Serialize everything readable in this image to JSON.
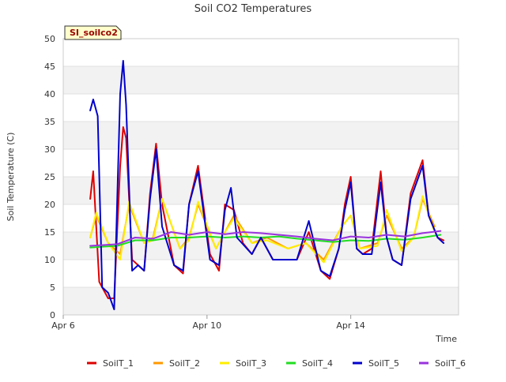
{
  "chart_data": {
    "type": "line",
    "title": "Soil CO2 Temperatures",
    "xlabel": "Time",
    "ylabel": "Soil Temperature (C)",
    "annotation": "SI_soilco2",
    "ylim": [
      0,
      50
    ],
    "yticks": [
      0,
      5,
      10,
      15,
      20,
      25,
      30,
      35,
      40,
      45,
      50
    ],
    "xlim": [
      "2024-04-06T00:00",
      "2024-04-17T00:00"
    ],
    "xticks": [
      {
        "label": "Apr 6",
        "x": "2024-04-06T00:00"
      },
      {
        "label": "Apr 10",
        "x": "2024-04-10T00:00"
      },
      {
        "label": "Apr 14",
        "x": "2024-04-14T00:00"
      }
    ],
    "grid": "horizontal bands",
    "legend_position": "bottom",
    "colors": {
      "SoilT_1": "#dd0000",
      "SoilT_2": "#ff9900",
      "SoilT_3": "#ffee00",
      "SoilT_4": "#22dd22",
      "SoilT_5": "#0000cc",
      "SoilT_6": "#9933dd",
      "annotation_bg": "#ffffcc",
      "annotation_text": "#990000",
      "band": "#f2f2f2"
    },
    "series": [
      {
        "name": "SoilT_1",
        "x": [
          "2024-04-06T18:00",
          "2024-04-06T20:00",
          "2024-04-07T00:00",
          "2024-04-07T02:00",
          "2024-04-07T06:00",
          "2024-04-07T10:00",
          "2024-04-07T14:00",
          "2024-04-07T16:00",
          "2024-04-07T18:00",
          "2024-04-07T22:00",
          "2024-04-08T02:00",
          "2024-04-08T06:00",
          "2024-04-08T10:00",
          "2024-04-08T14:00",
          "2024-04-08T18:00",
          "2024-04-09T02:00",
          "2024-04-09T08:00",
          "2024-04-09T12:00",
          "2024-04-09T18:00",
          "2024-04-10T02:00",
          "2024-04-10T08:00",
          "2024-04-10T12:00",
          "2024-04-10T18:00",
          "2024-04-11T00:00",
          "2024-04-11T06:00",
          "2024-04-11T12:00",
          "2024-04-11T16:00",
          "2024-04-11T20:00",
          "2024-04-12T04:00",
          "2024-04-12T12:00",
          "2024-04-12T20:00",
          "2024-04-13T04:00",
          "2024-04-13T10:00",
          "2024-04-13T16:00",
          "2024-04-13T20:00",
          "2024-04-14T00:00",
          "2024-04-14T04:00",
          "2024-04-14T08:00",
          "2024-04-14T14:00",
          "2024-04-14T20:00",
          "2024-04-15T00:00",
          "2024-04-15T04:00",
          "2024-04-15T10:00",
          "2024-04-15T16:00",
          "2024-04-16T00:00",
          "2024-04-16T04:00",
          "2024-04-16T10:00",
          "2024-04-16T14:00"
        ],
        "values": [
          21,
          26,
          6,
          5,
          3,
          3,
          27,
          34,
          32,
          10,
          9,
          8,
          22,
          31,
          20,
          9,
          7.5,
          20,
          27,
          11,
          8,
          20,
          19,
          13,
          11,
          14,
          12,
          10,
          10,
          10,
          15,
          8,
          6.5,
          12,
          20,
          25,
          12,
          11,
          12,
          26,
          14,
          10,
          9,
          22,
          28,
          18,
          14,
          13.5
        ]
      },
      {
        "name": "SoilT_2",
        "x": [
          "2024-04-06T18:00",
          "2024-04-06T22:00",
          "2024-04-07T06:00",
          "2024-04-07T14:00",
          "2024-04-07T20:00",
          "2024-04-08T06:00",
          "2024-04-08T12:00",
          "2024-04-08T18:00",
          "2024-04-09T06:00",
          "2024-04-09T12:00",
          "2024-04-09T18:00",
          "2024-04-10T06:00",
          "2024-04-10T12:00",
          "2024-04-10T18:00",
          "2024-04-11T06:00",
          "2024-04-11T16:00",
          "2024-04-12T06:00",
          "2024-04-12T18:00",
          "2024-04-13T06:00",
          "2024-04-13T18:00",
          "2024-04-14T00:00",
          "2024-04-14T06:00",
          "2024-04-14T18:00",
          "2024-04-15T00:00",
          "2024-04-15T10:00",
          "2024-04-15T18:00",
          "2024-04-16T00:00",
          "2024-04-16T08:00"
        ],
        "values": [
          14,
          18,
          13,
          11,
          20,
          13,
          14,
          21,
          12,
          14,
          20,
          12,
          15,
          18,
          13,
          14,
          12,
          13,
          10,
          16,
          18,
          12,
          13,
          18,
          12,
          14,
          21,
          16
        ]
      },
      {
        "name": "SoilT_3",
        "x": [
          "2024-04-06T18:00",
          "2024-04-06T22:00",
          "2024-04-07T06:00",
          "2024-04-07T14:00",
          "2024-04-07T20:00",
          "2024-04-08T06:00",
          "2024-04-08T12:00",
          "2024-04-08T18:00",
          "2024-04-09T06:00",
          "2024-04-09T12:00",
          "2024-04-09T18:00",
          "2024-04-10T06:00",
          "2024-04-10T12:00",
          "2024-04-10T18:00",
          "2024-04-11T06:00",
          "2024-04-11T16:00",
          "2024-04-12T06:00",
          "2024-04-12T18:00",
          "2024-04-13T06:00",
          "2024-04-13T18:00",
          "2024-04-14T00:00",
          "2024-04-14T06:00",
          "2024-04-14T18:00",
          "2024-04-15T00:00",
          "2024-04-15T10:00",
          "2024-04-15T18:00",
          "2024-04-16T00:00",
          "2024-04-16T08:00"
        ],
        "values": [
          14,
          18.5,
          13,
          10,
          20.5,
          13,
          13.5,
          21,
          12,
          13.5,
          20.5,
          12,
          15,
          17.5,
          13,
          13.5,
          12,
          13,
          9.5,
          16,
          18,
          12,
          12.5,
          19,
          11.5,
          14,
          21.5,
          15
        ]
      },
      {
        "name": "SoilT_4",
        "x": [
          "2024-04-06T18:00",
          "2024-04-07T12:00",
          "2024-04-08T00:00",
          "2024-04-08T12:00",
          "2024-04-09T00:00",
          "2024-04-09T12:00",
          "2024-04-10T00:00",
          "2024-04-10T12:00",
          "2024-04-11T00:00",
          "2024-04-11T12:00",
          "2024-04-12T00:00",
          "2024-04-12T12:00",
          "2024-04-13T00:00",
          "2024-04-13T12:00",
          "2024-04-14T00:00",
          "2024-04-14T12:00",
          "2024-04-15T00:00",
          "2024-04-15T12:00",
          "2024-04-16T00:00",
          "2024-04-16T12:00"
        ],
        "values": [
          12.2,
          12.5,
          13.5,
          13.5,
          14,
          14,
          14.2,
          14,
          14.2,
          14,
          14.2,
          13.8,
          13.5,
          13.2,
          13.5,
          13.4,
          13.8,
          13.6,
          14,
          14.5
        ]
      },
      {
        "name": "SoilT_5",
        "x": [
          "2024-04-06T18:00",
          "2024-04-06T20:00",
          "2024-04-06T23:00",
          "2024-04-07T02:00",
          "2024-04-07T06:00",
          "2024-04-07T10:00",
          "2024-04-07T14:00",
          "2024-04-07T16:00",
          "2024-04-07T18:00",
          "2024-04-07T22:00",
          "2024-04-08T02:00",
          "2024-04-08T06:00",
          "2024-04-08T10:00",
          "2024-04-08T14:00",
          "2024-04-08T18:00",
          "2024-04-09T02:00",
          "2024-04-09T08:00",
          "2024-04-09T12:00",
          "2024-04-09T18:00",
          "2024-04-10T02:00",
          "2024-04-10T08:00",
          "2024-04-10T12:00",
          "2024-04-10T16:00",
          "2024-04-10T20:00",
          "2024-04-11T06:00",
          "2024-04-11T12:00",
          "2024-04-11T16:00",
          "2024-04-11T20:00",
          "2024-04-12T04:00",
          "2024-04-12T12:00",
          "2024-04-12T20:00",
          "2024-04-13T04:00",
          "2024-04-13T10:00",
          "2024-04-13T16:00",
          "2024-04-13T20:00",
          "2024-04-14T00:00",
          "2024-04-14T04:00",
          "2024-04-14T08:00",
          "2024-04-14T14:00",
          "2024-04-14T20:00",
          "2024-04-15T00:00",
          "2024-04-15T04:00",
          "2024-04-15T10:00",
          "2024-04-15T16:00",
          "2024-04-16T00:00",
          "2024-04-16T04:00",
          "2024-04-16T10:00",
          "2024-04-16T14:00"
        ],
        "values": [
          37,
          39,
          36,
          5,
          4,
          1,
          40,
          46,
          38,
          8,
          9,
          8,
          21,
          30,
          16,
          9,
          8,
          20,
          26,
          10,
          9,
          19,
          23,
          14,
          11,
          14,
          12,
          10,
          10,
          10,
          17,
          8,
          7,
          12,
          19,
          24,
          12,
          11,
          11,
          24,
          14,
          10,
          9,
          21,
          27,
          18,
          14,
          13
        ]
      },
      {
        "name": "SoilT_6",
        "x": [
          "2024-04-06T18:00",
          "2024-04-07T12:00",
          "2024-04-08T00:00",
          "2024-04-08T12:00",
          "2024-04-09T00:00",
          "2024-04-09T12:00",
          "2024-04-10T00:00",
          "2024-04-10T12:00",
          "2024-04-11T00:00",
          "2024-04-11T12:00",
          "2024-04-12T00:00",
          "2024-04-12T12:00",
          "2024-04-13T00:00",
          "2024-04-13T12:00",
          "2024-04-14T00:00",
          "2024-04-14T12:00",
          "2024-04-15T00:00",
          "2024-04-15T12:00",
          "2024-04-16T00:00",
          "2024-04-16T12:00"
        ],
        "values": [
          12.5,
          12.8,
          14,
          13.8,
          15,
          14.5,
          15,
          14.6,
          15,
          14.8,
          14.5,
          14.2,
          13.8,
          13.5,
          14.2,
          14,
          14.5,
          14.2,
          14.8,
          15.2
        ]
      }
    ]
  }
}
